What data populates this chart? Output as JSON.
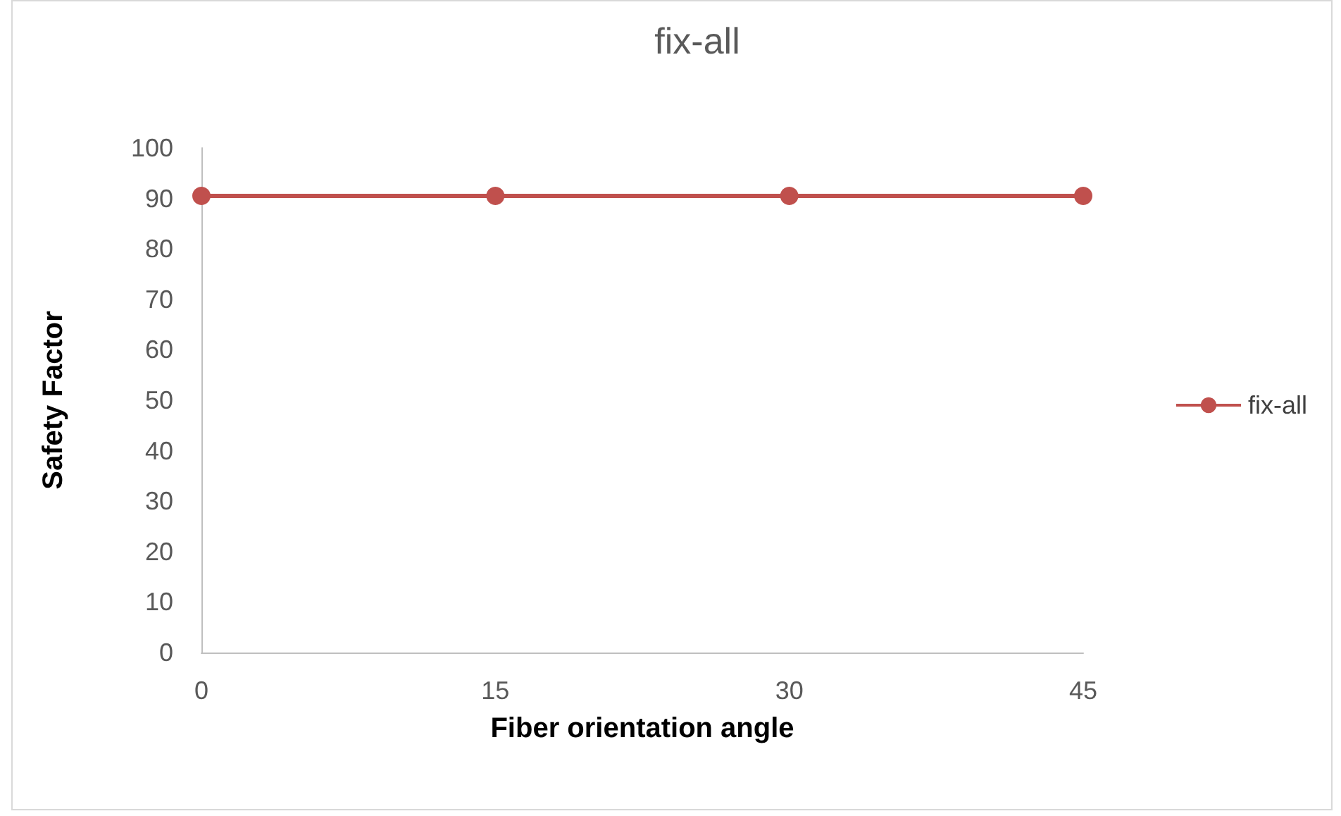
{
  "chart_data": {
    "type": "line",
    "title": "fix-all",
    "xlabel": "Fiber orientation angle",
    "ylabel": "Safety Factor",
    "x": [
      0,
      15,
      30,
      45
    ],
    "series": [
      {
        "name": "fix-all",
        "color": "#c0504d",
        "values": [
          90.5,
          90.5,
          90.5,
          90.5
        ]
      }
    ],
    "xlim": [
      0,
      45
    ],
    "xticks": [
      0,
      15,
      30,
      45
    ],
    "ylim": [
      0,
      100
    ],
    "yticks": [
      0,
      10,
      20,
      30,
      40,
      50,
      60,
      70,
      80,
      90,
      100
    ],
    "grid": false,
    "legend": "right",
    "marker": "circle",
    "line_style": "solid"
  }
}
